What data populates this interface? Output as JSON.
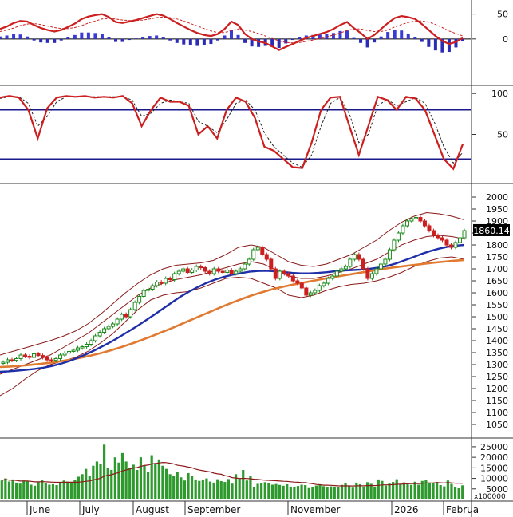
{
  "chart_data": [
    {
      "type": "line",
      "panel": "macd",
      "ylim": [
        -90,
        75
      ],
      "yticks": [
        50,
        0
      ],
      "macd_line": [
        20,
        25,
        32,
        36,
        35,
        28,
        22,
        18,
        15,
        18,
        24,
        31,
        40,
        45,
        48,
        50,
        44,
        34,
        32,
        35,
        38,
        42,
        46,
        50,
        47,
        40,
        32,
        25,
        18,
        12,
        8,
        6,
        10,
        20,
        35,
        28,
        10,
        0,
        -5,
        -8,
        -15,
        -22,
        -16,
        -10,
        -4,
        2,
        6,
        10,
        14,
        20,
        28,
        34,
        22,
        12,
        0,
        8,
        20,
        32,
        42,
        46,
        44,
        40,
        30,
        18,
        6,
        -4,
        -10,
        -6,
        2
      ],
      "signal_line": [
        15,
        18,
        22,
        27,
        30,
        31,
        29,
        26,
        23,
        21,
        21,
        23,
        27,
        32,
        36,
        40,
        41,
        40,
        38,
        37,
        37,
        38,
        40,
        43,
        44,
        43,
        40,
        36,
        31,
        26,
        21,
        16,
        13,
        13,
        17,
        20,
        18,
        15,
        11,
        6,
        1,
        -4,
        -7,
        -8,
        -7,
        -5,
        -2,
        1,
        4,
        8,
        12,
        17,
        20,
        20,
        17,
        15,
        15,
        18,
        24,
        29,
        33,
        36,
        36,
        34,
        29,
        23,
        16,
        11,
        6
      ],
      "histogram": [
        5,
        7,
        10,
        9,
        5,
        -3,
        -7,
        -8,
        -8,
        -3,
        3,
        8,
        13,
        13,
        12,
        10,
        3,
        -6,
        -6,
        -2,
        1,
        4,
        6,
        7,
        3,
        -3,
        -8,
        -11,
        -13,
        -14,
        -13,
        -10,
        -3,
        7,
        18,
        8,
        -8,
        -15,
        -16,
        -14,
        -16,
        -18,
        -9,
        -2,
        3,
        7,
        8,
        9,
        10,
        12,
        16,
        17,
        2,
        -8,
        -17,
        -7,
        5,
        14,
        18,
        17,
        11,
        4,
        -6,
        -16,
        -23,
        -27,
        -26,
        -17,
        -4
      ]
    },
    {
      "type": "line",
      "panel": "stochastic",
      "ylim": [
        -8,
        108
      ],
      "yticks": [
        100,
        50
      ],
      "levels": [
        80,
        20
      ],
      "k_line": [
        95,
        97,
        95,
        80,
        45,
        82,
        95,
        97,
        96,
        97,
        95,
        96,
        95,
        97,
        88,
        60,
        80,
        95,
        90,
        90,
        85,
        50,
        60,
        45,
        80,
        95,
        90,
        70,
        35,
        30,
        20,
        10,
        9,
        40,
        80,
        95,
        96,
        60,
        25,
        60,
        96,
        92,
        80,
        96,
        94,
        80,
        50,
        20,
        8,
        38
      ],
      "d_line": [
        94,
        96,
        96,
        88,
        60,
        72,
        90,
        96,
        96,
        96,
        96,
        96,
        96,
        96,
        92,
        72,
        76,
        88,
        92,
        90,
        88,
        66,
        60,
        52,
        68,
        88,
        92,
        80,
        52,
        35,
        25,
        15,
        10,
        25,
        60,
        88,
        95,
        75,
        40,
        50,
        85,
        93,
        85,
        90,
        95,
        88,
        65,
        35,
        15,
        28
      ]
    },
    {
      "type": "line",
      "panel": "price",
      "ylim": [
        1000,
        2050
      ],
      "yticks": [
        2000,
        1950,
        1900,
        1850,
        1800,
        1750,
        1700,
        1650,
        1600,
        1550,
        1500,
        1450,
        1400,
        1350,
        1300,
        1250,
        1200,
        1150,
        1100,
        1050
      ],
      "last_value": "1860.14",
      "close_series": [
        1310,
        1320,
        1318,
        1325,
        1340,
        1335,
        1330,
        1345,
        1338,
        1330,
        1320,
        1318,
        1325,
        1340,
        1348,
        1355,
        1360,
        1370,
        1375,
        1385,
        1400,
        1420,
        1435,
        1450,
        1460,
        1470,
        1490,
        1510,
        1500,
        1530,
        1560,
        1585,
        1610,
        1615,
        1630,
        1645,
        1640,
        1660,
        1655,
        1680,
        1690,
        1700,
        1685,
        1695,
        1710,
        1705,
        1690,
        1680,
        1700,
        1690,
        1685,
        1695,
        1680,
        1690,
        1700,
        1720,
        1740,
        1780,
        1790,
        1760,
        1740,
        1700,
        1660,
        1690,
        1680,
        1670,
        1650,
        1640,
        1620,
        1590,
        1600,
        1610,
        1630,
        1640,
        1660,
        1670,
        1690,
        1700,
        1710,
        1740,
        1760,
        1740,
        1700,
        1660,
        1680,
        1700,
        1720,
        1740,
        1780,
        1820,
        1850,
        1880,
        1900,
        1910,
        1915,
        1900,
        1880,
        1860,
        1840,
        1830,
        1820,
        1800,
        1790,
        1810,
        1830,
        1860
      ],
      "ma_blue_series": [
        1270,
        1272,
        1275,
        1278,
        1282,
        1287,
        1294,
        1303,
        1314,
        1328,
        1343,
        1360,
        1378,
        1397,
        1418,
        1440,
        1462,
        1486,
        1510,
        1535,
        1560,
        1584,
        1605,
        1624,
        1641,
        1655,
        1666,
        1675,
        1682,
        1688,
        1691,
        1692,
        1690,
        1687,
        1683,
        1681,
        1681,
        1683,
        1686,
        1690,
        1693,
        1695,
        1697,
        1700,
        1705,
        1712,
        1722,
        1735,
        1748,
        1762,
        1774,
        1784,
        1792,
        1797,
        1800
      ],
      "ma_orange_series": [
        1290,
        1292,
        1295,
        1299,
        1303,
        1308,
        1314,
        1321,
        1329,
        1338,
        1348,
        1360,
        1373,
        1387,
        1402,
        1418,
        1435,
        1452,
        1470,
        1488,
        1506,
        1524,
        1542,
        1559,
        1575,
        1590,
        1603,
        1615,
        1625,
        1634,
        1642,
        1650,
        1658,
        1665,
        1672,
        1679,
        1686,
        1693,
        1700,
        1706,
        1711,
        1716,
        1721,
        1726,
        1730,
        1734,
        1737
      ],
      "bb_upper_series": [
        1340,
        1355,
        1370,
        1385,
        1400,
        1418,
        1440,
        1470,
        1510,
        1555,
        1600,
        1640,
        1675,
        1700,
        1715,
        1720,
        1725,
        1735,
        1760,
        1790,
        1800,
        1790,
        1760,
        1730,
        1715,
        1710,
        1720,
        1740,
        1760,
        1790,
        1820,
        1860,
        1895,
        1920,
        1935,
        1930,
        1920,
        1905
      ],
      "bb_lower_series": [
        1170,
        1200,
        1240,
        1275,
        1300,
        1315,
        1330,
        1355,
        1390,
        1430,
        1480,
        1530,
        1570,
        1590,
        1600,
        1605,
        1620,
        1640,
        1660,
        1665,
        1660,
        1640,
        1620,
        1590,
        1580,
        1590,
        1610,
        1625,
        1635,
        1640,
        1650,
        1665,
        1685,
        1710,
        1730,
        1745,
        1750,
        1740
      ],
      "bb_mid_series": [
        1260,
        1280,
        1300,
        1320,
        1340,
        1370,
        1400,
        1430,
        1470,
        1510,
        1550,
        1590,
        1620,
        1640,
        1655,
        1665,
        1675,
        1690,
        1705,
        1720,
        1730,
        1720,
        1695,
        1670,
        1660,
        1660,
        1670,
        1685,
        1700,
        1720,
        1740,
        1770,
        1800,
        1820,
        1835,
        1840,
        1835,
        1825
      ]
    },
    {
      "type": "bar",
      "panel": "volume",
      "ylim": [
        0,
        28000
      ],
      "yticks": [
        25000,
        20000,
        15000,
        10000,
        5000
      ],
      "multiplier": "x100000",
      "xlabels": [
        "June",
        "July",
        "August",
        "September",
        "November",
        "2026",
        "Februa"
      ],
      "values": [
        9000,
        10000,
        8500,
        9500,
        8000,
        7500,
        9000,
        8700,
        7000,
        6500,
        8200,
        9300,
        7800,
        7000,
        7200,
        6800,
        8000,
        9000,
        8500,
        7600,
        9400,
        10800,
        12000,
        14500,
        11000,
        16000,
        18000,
        17000,
        26000,
        15000,
        14000,
        20000,
        17500,
        22000,
        18000,
        15000,
        16500,
        14000,
        20000,
        16000,
        13000,
        21000,
        17000,
        19000,
        16000,
        14500,
        12000,
        11000,
        13000,
        10500,
        9000,
        12500,
        11000,
        9500,
        8800,
        9200,
        10000,
        8500,
        8000,
        9600,
        8700,
        8300,
        9700,
        7500,
        12000,
        10000,
        14000,
        9000,
        11000,
        6000,
        7400,
        7800,
        8200,
        7600,
        7000,
        7300,
        6900,
        6500,
        7200,
        6100,
        5800,
        6400,
        7000,
        6800,
        5400,
        5900,
        6600,
        7100,
        6300,
        5800,
        6200,
        5700,
        6000,
        6900,
        7800,
        6500,
        5600,
        8000,
        7200,
        6100,
        8200,
        7400,
        6000,
        9500,
        8800,
        6600,
        7500,
        8300,
        9600,
        7200,
        8100,
        7700,
        6900,
        8400,
        7000,
        8800,
        9400,
        8000,
        7600,
        8300,
        6800,
        6200,
        9000,
        7400,
        5800,
        5300,
        6700
      ]
    }
  ]
}
